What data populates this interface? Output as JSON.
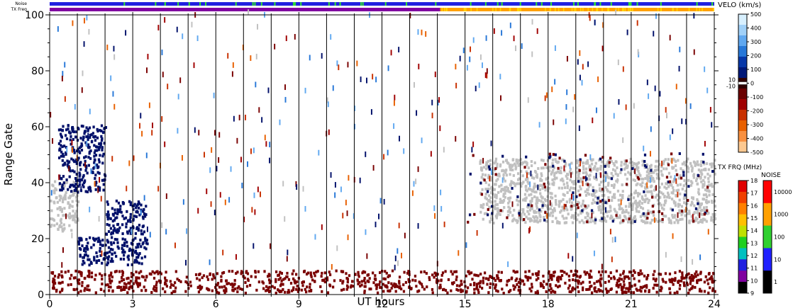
{
  "chart_data": {
    "type": "heatmap",
    "xlabel": "UT hours",
    "ylabel": "Range Gate",
    "xlim": [
      0,
      24
    ],
    "ylim": [
      0,
      100
    ],
    "x_ticks": [
      0,
      3,
      6,
      9,
      12,
      15,
      18,
      21,
      24
    ],
    "y_ticks": [
      0,
      20,
      40,
      60,
      80,
      100
    ],
    "hour_grid_lines": [
      1,
      2,
      3,
      4,
      5,
      6,
      7,
      8,
      9,
      10,
      11,
      12,
      13,
      14,
      15,
      16,
      17,
      18,
      19,
      20,
      21,
      22,
      23
    ],
    "status_bars": {
      "noise_label": "Noise",
      "txfreq_label": "TX Freq",
      "noise_color": "#2020e0",
      "noise_flag_color": "#30e030",
      "txfreq_before_color": "#8000a0",
      "txfreq_after_color": "#ffa000",
      "txfreq_switch_hour": 14.1
    },
    "velocity_scale": {
      "title": "VELO (km/s)",
      "ticks": [
        "500",
        "400",
        "300",
        "200",
        "100",
        "0",
        "-100",
        "-200",
        "-300",
        "-400",
        "-500"
      ],
      "zero_marks": [
        "10",
        "-10"
      ],
      "colors": [
        "#d8f0ff",
        "#a0d0f8",
        "#60a8f0",
        "#2878d8",
        "#0838a8",
        "#001878",
        "#300000",
        "#6a0000",
        "#a00000",
        "#c83000",
        "#e86000",
        "#f89040",
        "#fcc890"
      ]
    },
    "txfreq_scale": {
      "title": "TX FRQ (MHz)",
      "ticks": [
        "18",
        "17",
        "16",
        "15",
        "14",
        "13",
        "12",
        "11",
        "10",
        "9"
      ],
      "colors": [
        "#e00000",
        "#f04000",
        "#ff8000",
        "#ffc000",
        "#c0e000",
        "#20d020",
        "#00c0c0",
        "#2020e0",
        "#8000a0",
        "#000000"
      ]
    },
    "noise_scale": {
      "title": "NOISE",
      "ticks": [
        "10000",
        "1000",
        "100",
        "10",
        "1"
      ],
      "colors": [
        "#ff0000",
        "#ffa000",
        "#30d030",
        "#2020ff",
        "#000000"
      ]
    },
    "series": [
      {
        "kind": "ground_scatter",
        "color": "#c0c0c0",
        "hours": [
          0.0,
          1.0
        ],
        "gates": [
          22,
          40
        ]
      },
      {
        "kind": "toward",
        "color": "#00106a",
        "hours": [
          1.0,
          3.5
        ],
        "gates": [
          10,
          20
        ]
      },
      {
        "kind": "toward",
        "color": "#00106a",
        "hours": [
          2.0,
          3.5
        ],
        "gates": [
          21,
          33
        ]
      },
      {
        "kind": "toward",
        "color": "#00106a",
        "hours": [
          0.3,
          2.0
        ],
        "gates": [
          36,
          60
        ]
      },
      {
        "kind": "away",
        "color": "#7a0000",
        "hours": [
          0.0,
          24.0
        ],
        "gates": [
          0,
          8
        ]
      },
      {
        "kind": "ground_scatter",
        "color": "#c0c0c0",
        "hours": [
          15.5,
          24.0
        ],
        "gates": [
          25,
          48
        ]
      },
      {
        "kind": "mixed",
        "color": "#00106a",
        "hours": [
          15.0,
          24.0
        ],
        "gates": [
          25,
          50
        ]
      }
    ]
  }
}
